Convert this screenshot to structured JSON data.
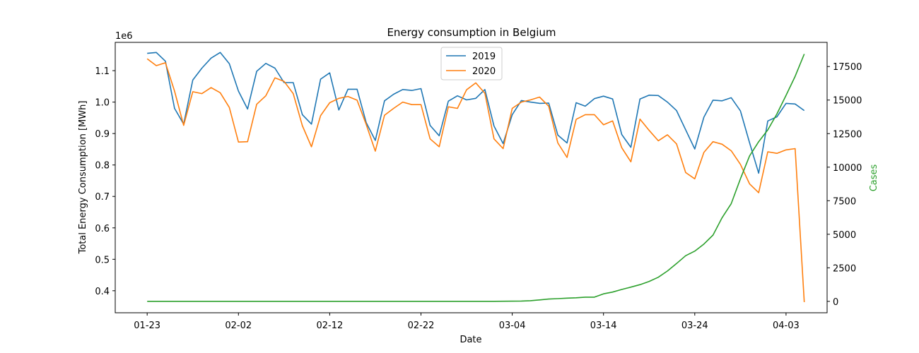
{
  "chart_data": {
    "type": "line",
    "title": "Energy consumption in Belgium",
    "xlabel": "Date",
    "ylabel": "Total Energy Consumption [MWh]",
    "y2label": "Cases",
    "y_offset_text": "1e6",
    "x_start_day": 0,
    "x_range": [
      -3.5,
      74.5
    ],
    "ylim": [
      330000,
      1190000
    ],
    "y2lim": [
      -850,
      19300
    ],
    "x_ticks": [
      {
        "day": 0,
        "label": "01-23"
      },
      {
        "day": 10,
        "label": "02-02"
      },
      {
        "day": 20,
        "label": "02-12"
      },
      {
        "day": 30,
        "label": "02-22"
      },
      {
        "day": 40,
        "label": "03-04"
      },
      {
        "day": 50,
        "label": "03-14"
      },
      {
        "day": 60,
        "label": "03-24"
      },
      {
        "day": 70,
        "label": "04-03"
      }
    ],
    "y_ticks": [
      {
        "value": 400000,
        "label": "0.4"
      },
      {
        "value": 500000,
        "label": "0.5"
      },
      {
        "value": 600000,
        "label": "0.6"
      },
      {
        "value": 700000,
        "label": "0.7"
      },
      {
        "value": 800000,
        "label": "0.8"
      },
      {
        "value": 900000,
        "label": "0.9"
      },
      {
        "value": 1000000,
        "label": "1.0"
      },
      {
        "value": 1100000,
        "label": "1.1"
      }
    ],
    "y2_ticks": [
      {
        "value": 0,
        "label": "0"
      },
      {
        "value": 2500,
        "label": "2500"
      },
      {
        "value": 5000,
        "label": "5000"
      },
      {
        "value": 7500,
        "label": "7500"
      },
      {
        "value": 10000,
        "label": "10000"
      },
      {
        "value": 12500,
        "label": "12500"
      },
      {
        "value": 15000,
        "label": "15000"
      },
      {
        "value": 17500,
        "label": "17500"
      }
    ],
    "legend_position": "top-center",
    "colors": {
      "2019": "#1f77b4",
      "2020": "#ff7f0e",
      "Cases": "#2ca02c"
    },
    "series": [
      {
        "name": "2019",
        "axis": "left",
        "color": "#1f77b4",
        "values": [
          1155000,
          1158000,
          1130000,
          980000,
          930000,
          1070000,
          1108000,
          1140000,
          1158000,
          1122000,
          1035000,
          978000,
          1098000,
          1123000,
          1108000,
          1062000,
          1062000,
          960000,
          930000,
          1073000,
          1093000,
          975000,
          1041000,
          1041000,
          935000,
          878000,
          1004000,
          1025000,
          1040000,
          1037000,
          1043000,
          926000,
          893000,
          1003000,
          1020000,
          1007000,
          1012000,
          1040000,
          924000,
          868000,
          960000,
          1005000,
          1000000,
          996000,
          997000,
          895000,
          870000,
          998000,
          987000,
          1011000,
          1019000,
          1010000,
          897000,
          856000,
          1010000,
          1022000,
          1021000,
          1000000,
          973000,
          912000,
          851000,
          952000,
          1006000,
          1004000,
          1014000,
          972000,
          871000,
          774000,
          940000,
          953000,
          996000,
          994000,
          973000
        ]
      },
      {
        "name": "2020",
        "axis": "left",
        "color": "#ff7f0e",
        "values": [
          1138000,
          1116000,
          1125000,
          1035000,
          926000,
          1033000,
          1027000,
          1046000,
          1030000,
          983000,
          873000,
          874000,
          993000,
          1020000,
          1077000,
          1066000,
          1027000,
          925000,
          858000,
          957000,
          998000,
          1012000,
          1018000,
          1006000,
          929000,
          844000,
          958000,
          980000,
          1000000,
          992000,
          992000,
          883000,
          858000,
          985000,
          980000,
          1039000,
          1061000,
          1028000,
          883000,
          852000,
          980000,
          1000000,
          1007000,
          1016000,
          987000,
          870000,
          824000,
          945000,
          960000,
          960000,
          928000,
          940000,
          855000,
          810000,
          946000,
          910000,
          877000,
          896000,
          867000,
          776000,
          756000,
          840000,
          874000,
          866000,
          845000,
          802000,
          740000,
          712000,
          842000,
          837000,
          848000,
          852000,
          364000
        ]
      },
      {
        "name": "Cases",
        "axis": "right",
        "color": "#2ca02c",
        "values": [
          0,
          0,
          0,
          0,
          0,
          0,
          0,
          0,
          0,
          0,
          0,
          0,
          1,
          1,
          1,
          1,
          1,
          1,
          1,
          1,
          1,
          1,
          1,
          1,
          1,
          1,
          1,
          1,
          1,
          1,
          1,
          1,
          1,
          1,
          1,
          1,
          1,
          1,
          2,
          8,
          13,
          23,
          50,
          109,
          169,
          200,
          239,
          267,
          314,
          314,
          559,
          689,
          886,
          1058,
          1243,
          1486,
          1795,
          2257,
          2815,
          3401,
          3743,
          4269,
          4937,
          6235,
          7284,
          9134,
          10836,
          11899,
          12775,
          13964,
          15348,
          16770,
          18431
        ]
      }
    ]
  }
}
